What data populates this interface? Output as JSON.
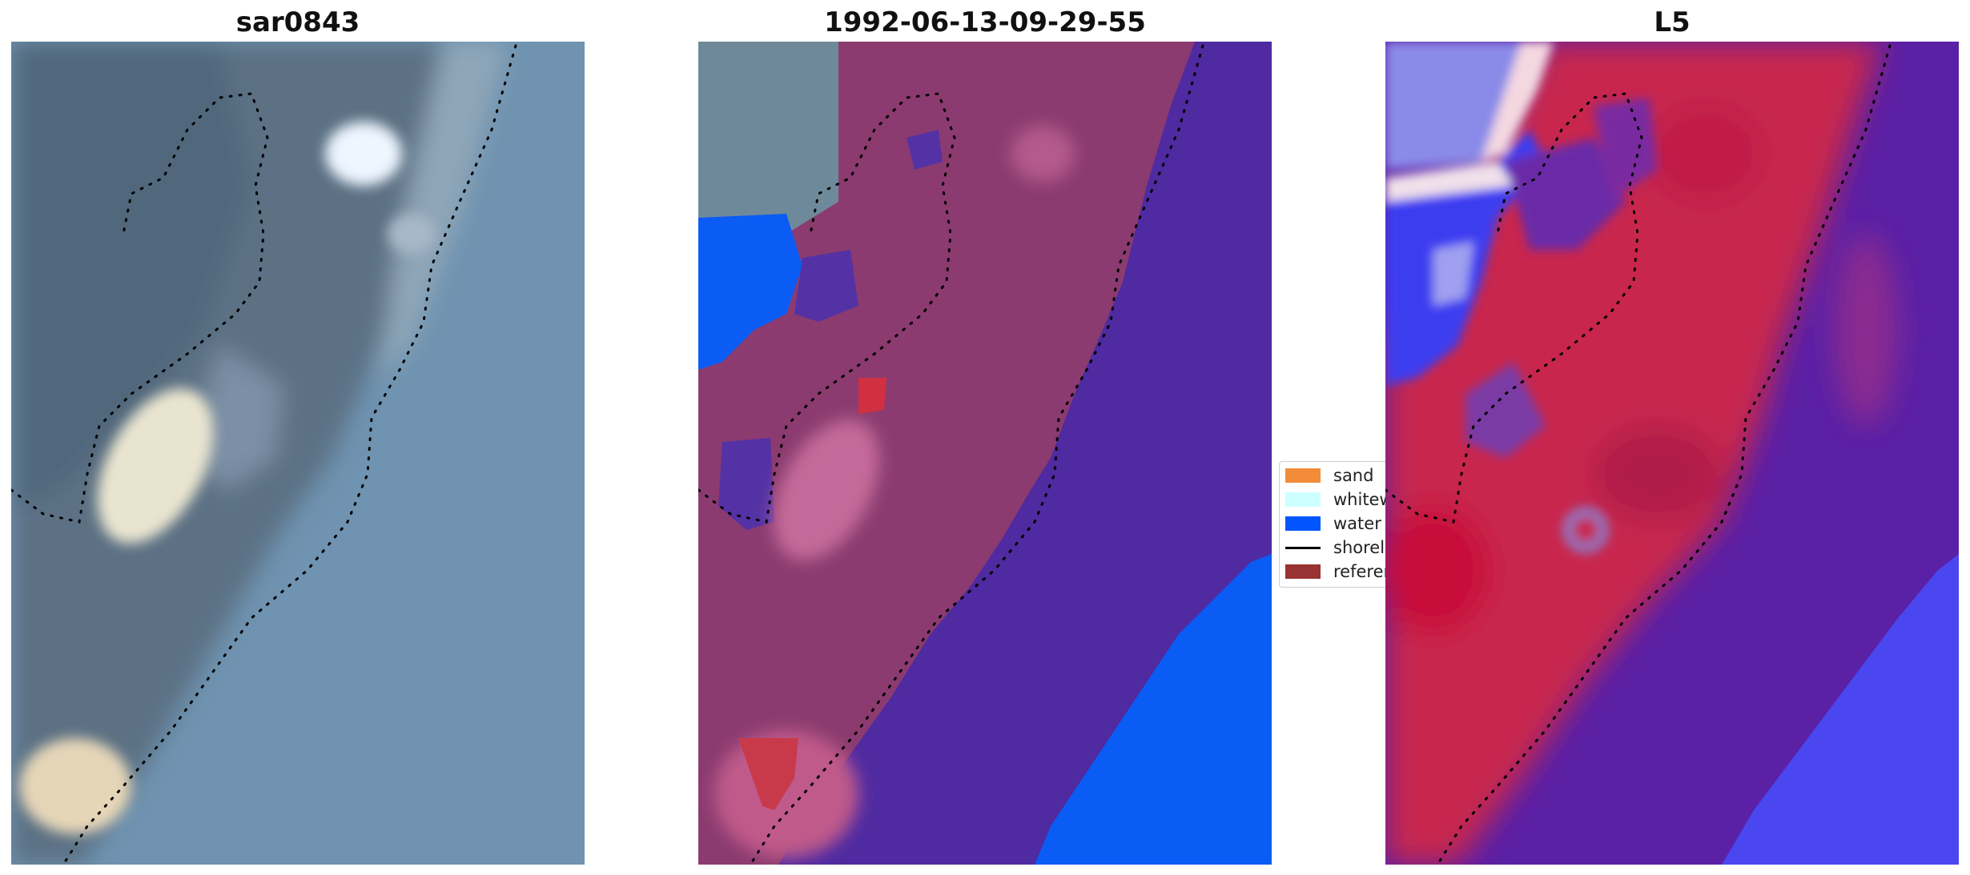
{
  "panels": [
    {
      "title": "sar0843",
      "content": "rgb-satellite-image"
    },
    {
      "title": "1992-06-13-09-29-55",
      "content": "classified-image"
    },
    {
      "title": "L5",
      "content": "mndwi-index-image"
    }
  ],
  "legend": {
    "items": [
      {
        "label": "sand",
        "color": "#f28c38",
        "kind": "patch"
      },
      {
        "label": "whitewater",
        "color": "#ccffff",
        "kind": "patch"
      },
      {
        "label": "water",
        "color": "#0055ff",
        "kind": "patch"
      },
      {
        "label": "shoreline",
        "color": "#000000",
        "kind": "line"
      },
      {
        "label": "reference shoreline",
        "color": "#993333",
        "kind": "patch"
      }
    ]
  },
  "colors": {
    "rgb_background": "#6f8fa6",
    "rgb_land": "#5d6f80",
    "land_overlay": "#8b3b70",
    "ocean_class": "#4f2aa0",
    "water_class": "#0055ff",
    "index_high": "#c8123d",
    "index_low": "#5a2aa5",
    "index_water": "#4444ff"
  }
}
